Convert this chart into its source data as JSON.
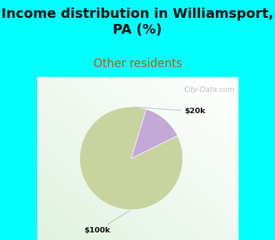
{
  "title": "Income distribution in Williamsport,\nPA (%)",
  "subtitle": "Other residents",
  "title_fontsize": 14,
  "subtitle_fontsize": 12,
  "title_color": "#111111",
  "subtitle_color": "#cc5500",
  "bg_color": "#00ffff",
  "chart_bg_color": "#f0f8f0",
  "slices": [
    87,
    13
  ],
  "slice_colors": [
    "#c8d4a0",
    "#c4a8d8"
  ],
  "startangle": 73,
  "watermark": "City-Data.com",
  "label_20k": "$20k",
  "label_100k": "$100k",
  "figsize": [
    4.0,
    3.5
  ],
  "dpi": 100
}
